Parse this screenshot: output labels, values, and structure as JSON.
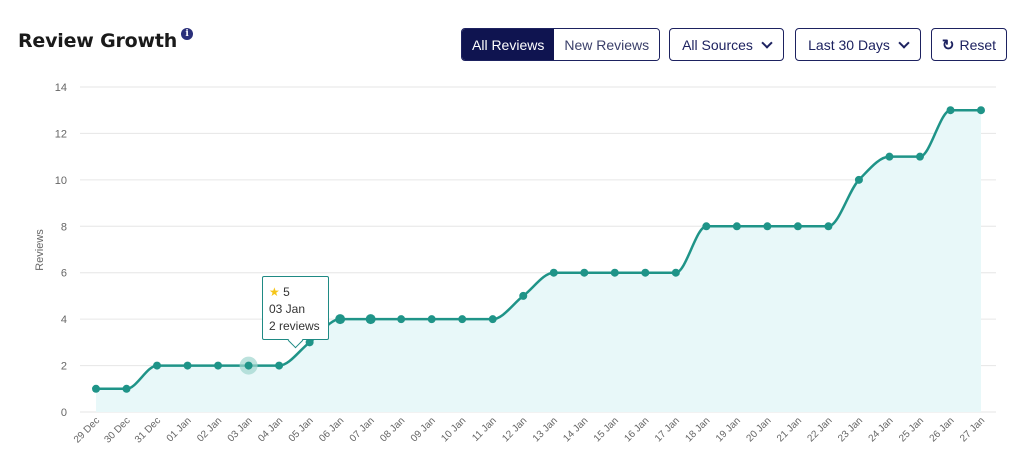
{
  "header": {
    "title": "Review Growth",
    "info_icon": "info-icon"
  },
  "controls": {
    "segment": {
      "active": "All Reviews",
      "inactive": "New Reviews"
    },
    "sources_label": "All Sources",
    "range_label": "Last 30 Days",
    "reset_label": "Reset",
    "reset_icon": "refresh-icon"
  },
  "tooltip": {
    "rating": "5",
    "date": "03 Jan",
    "count": "2 reviews"
  },
  "colors": {
    "line": "#1f9488",
    "fill": "#e8f8f9",
    "accent": "#0f1450"
  },
  "chart_data": {
    "type": "area",
    "title": "",
    "xlabel": "",
    "ylabel": "Reviews",
    "ylim": [
      0,
      14
    ],
    "yticks": [
      0,
      2,
      4,
      6,
      8,
      10,
      12,
      14
    ],
    "grid": true,
    "categories": [
      "29 Dec",
      "30 Dec",
      "31 Dec",
      "01 Jan",
      "02 Jan",
      "03 Jan",
      "04 Jan",
      "05 Jan",
      "06 Jan",
      "07 Jan",
      "08 Jan",
      "09 Jan",
      "10 Jan",
      "11 Jan",
      "12 Jan",
      "13 Jan",
      "14 Jan",
      "15 Jan",
      "16 Jan",
      "17 Jan",
      "18 Jan",
      "19 Jan",
      "20 Jan",
      "21 Jan",
      "22 Jan",
      "23 Jan",
      "24 Jan",
      "25 Jan",
      "26 Jan",
      "27 Jan"
    ],
    "series": [
      {
        "values": [
          1,
          1,
          2,
          2,
          2,
          2,
          2,
          3,
          4,
          4,
          4,
          4,
          4,
          4,
          5,
          6,
          6,
          6,
          6,
          6,
          8,
          8,
          8,
          8,
          8,
          10,
          11,
          11,
          13,
          13
        ]
      }
    ],
    "highlight_index": 5
  }
}
